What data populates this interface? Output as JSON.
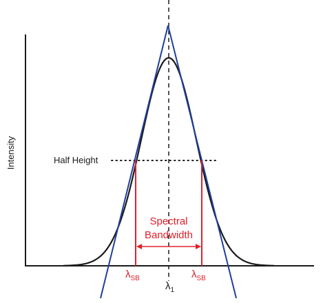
{
  "axes": {
    "ylabel": "Intensity"
  },
  "annotations": {
    "half_height": "Half Height",
    "spectral_line1": "Spectral",
    "spectral_line2": "Bandwidth",
    "lambda_symbol": "λ",
    "lambda_sb_sub": "SB",
    "lambda_center_sub": "1"
  },
  "colors": {
    "curve": "#1a1a1a",
    "tangent": "#1f3f9a",
    "bandwidth": "#e0202a"
  }
}
